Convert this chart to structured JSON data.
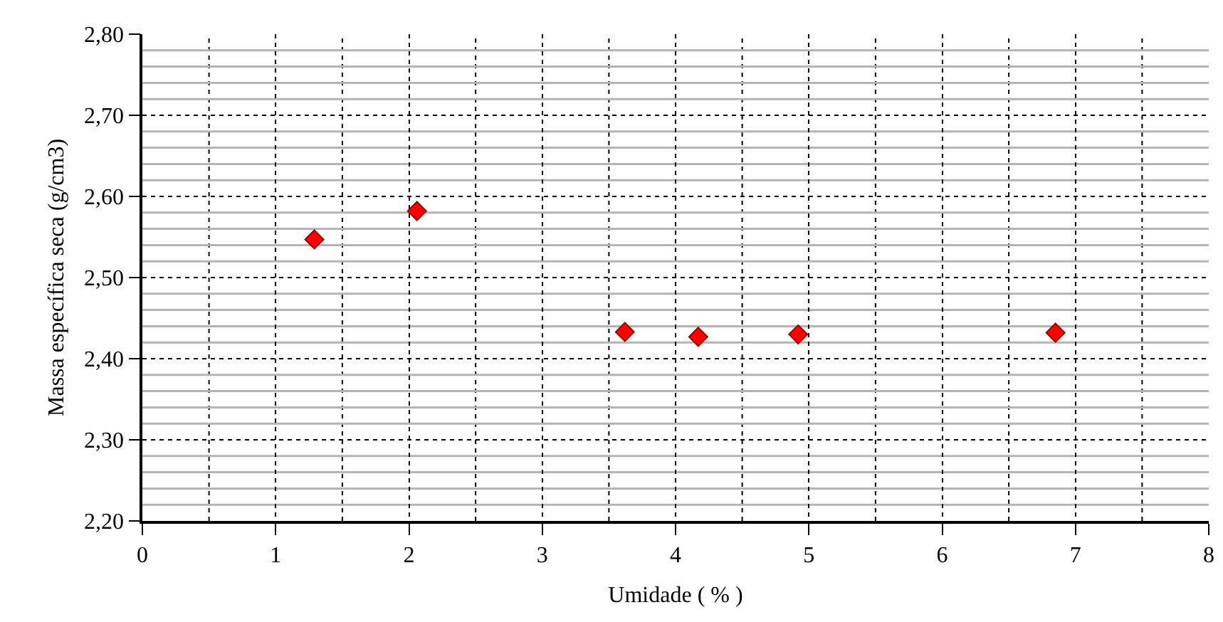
{
  "chart_data": {
    "type": "scatter",
    "xlabel": "Umidade ( % )",
    "ylabel": "Massa específica seca (g/cm3)",
    "x": [
      1.29,
      2.06,
      3.62,
      4.17,
      4.92,
      6.85
    ],
    "series": [
      {
        "color": "#ff0000",
        "values": [
          2.547,
          2.582,
          2.433,
          2.427,
          2.43,
          2.432
        ]
      }
    ],
    "marker": "diamond",
    "grid": true,
    "xlim": [
      0,
      8
    ],
    "ylim": [
      2.2,
      2.8
    ],
    "xticks": [
      0,
      {
        "value": 0.5,
        "label": null
      },
      1,
      {
        "value": 1.5,
        "label": null
      },
      2,
      {
        "value": 2.5,
        "label": null
      },
      3,
      {
        "value": 3.5,
        "label": null
      },
      4,
      {
        "value": 4.5,
        "label": null
      },
      5,
      {
        "value": 5.5,
        "label": null
      },
      6,
      {
        "value": 6.5,
        "label": null
      },
      7,
      {
        "value": 7.5,
        "label": null
      },
      8
    ],
    "yticks": [
      {
        "value": 2.2,
        "label": "2,20"
      },
      {
        "value": 2.22,
        "label": null
      },
      {
        "value": 2.24,
        "label": null
      },
      {
        "value": 2.26,
        "label": null
      },
      {
        "value": 2.28,
        "label": null
      },
      {
        "value": 2.3,
        "label": "2,30"
      },
      {
        "value": 2.32,
        "label": null
      },
      {
        "value": 2.34,
        "label": null
      },
      {
        "value": 2.36,
        "label": null
      },
      {
        "value": 2.38,
        "label": null
      },
      {
        "value": 2.4,
        "label": "2,40"
      },
      {
        "value": 2.42,
        "label": null
      },
      {
        "value": 2.44,
        "label": null
      },
      {
        "value": 2.46,
        "label": null
      },
      {
        "value": 2.48,
        "label": null
      },
      {
        "value": 2.5,
        "label": "2,50"
      },
      {
        "value": 2.52,
        "label": null
      },
      {
        "value": 2.54,
        "label": null
      },
      {
        "value": 2.56,
        "label": null
      },
      {
        "value": 2.58,
        "label": null
      },
      {
        "value": 2.6,
        "label": "2,60"
      },
      {
        "value": 2.62,
        "label": null
      },
      {
        "value": 2.64,
        "label": null
      },
      {
        "value": 2.66,
        "label": null
      },
      {
        "value": 2.68,
        "label": null
      },
      {
        "value": 2.7,
        "label": "2,70"
      },
      {
        "value": 2.72,
        "label": null
      },
      {
        "value": 2.74,
        "label": null
      },
      {
        "value": 2.76,
        "label": null
      },
      {
        "value": 2.78,
        "label": null
      },
      {
        "value": 2.8,
        "label": "2,80"
      }
    ]
  }
}
